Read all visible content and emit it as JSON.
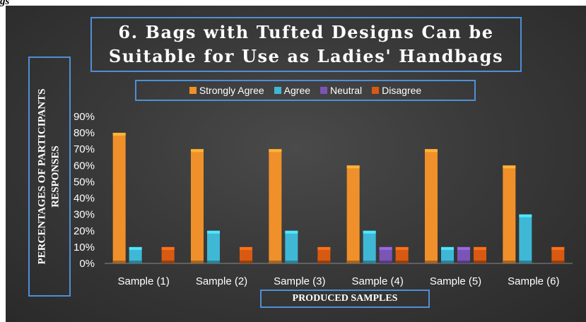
{
  "corner_text": "gs",
  "chart_data": {
    "type": "bar",
    "title_lines": [
      "6. Bags with Tufted Designs Can be",
      "Suitable for Use as Ladies' Handbags"
    ],
    "ylabel_lines": [
      "PERCENTAGES OF PARTICIPANTS",
      "RESPONSES"
    ],
    "xlabel": "PRODUCED SAMPLES",
    "categories": [
      "Sample (1)",
      "Sample (2)",
      "Sample (3)",
      "Sample (4)",
      "Sample (5)",
      "Sample (6)"
    ],
    "y_ticks": [
      "0%",
      "10%",
      "20%",
      "30%",
      "40%",
      "50%",
      "60%",
      "70%",
      "80%",
      "90%"
    ],
    "ylim": [
      0,
      90
    ],
    "grid": false,
    "legend_position": "top",
    "series": [
      {
        "name": "Strongly Agree",
        "color": "#f0902a",
        "values": [
          80,
          70,
          70,
          60,
          70,
          60
        ]
      },
      {
        "name": "Agree",
        "color": "#3fb8d6",
        "values": [
          10,
          20,
          20,
          20,
          10,
          30
        ]
      },
      {
        "name": "Neutral",
        "color": "#7a55b5",
        "values": [
          0,
          0,
          0,
          10,
          10,
          0
        ]
      },
      {
        "name": "Disagree",
        "color": "#d85a12",
        "values": [
          10,
          10,
          10,
          10,
          10,
          10
        ]
      }
    ]
  }
}
